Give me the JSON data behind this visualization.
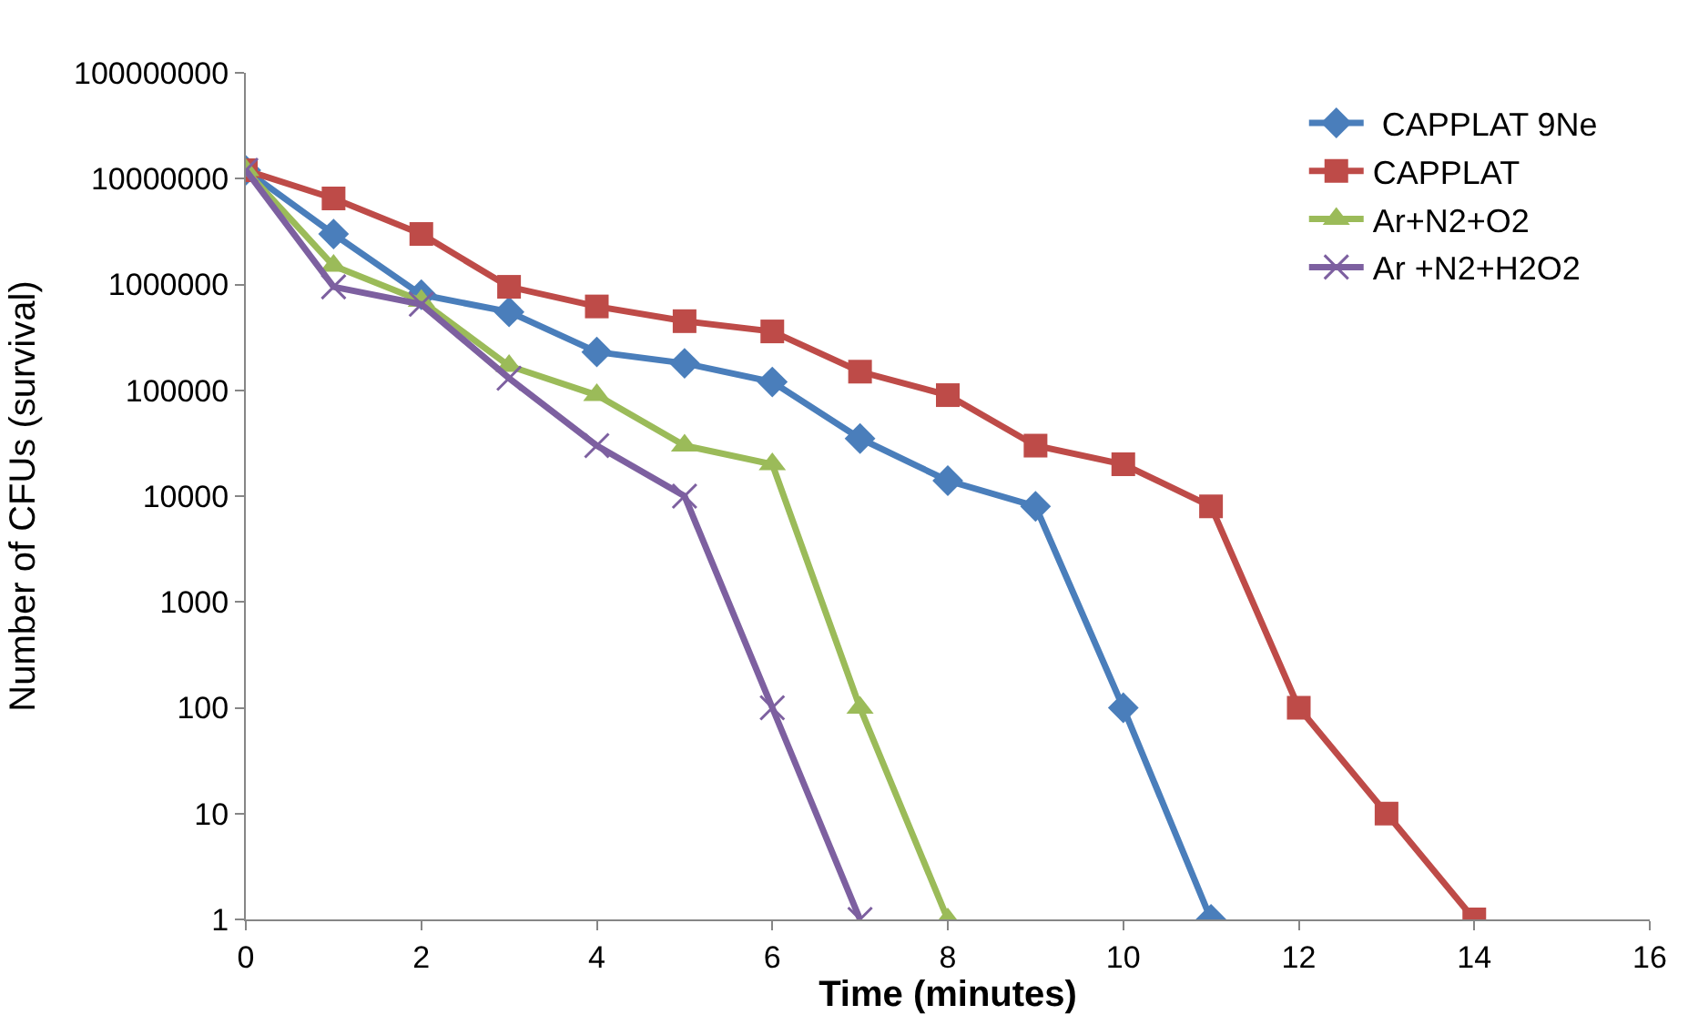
{
  "chart_data": {
    "type": "line",
    "xlabel": "Time (minutes)",
    "ylabel": "Number of CFUs (survival)",
    "log": "y",
    "legend": "top right",
    "xlim": [
      0,
      16
    ],
    "xticks": [
      0,
      2,
      4,
      6,
      8,
      10,
      12,
      14,
      16
    ],
    "ylim": [
      1,
      100000000
    ],
    "yticks": [
      1,
      10,
      100,
      1000,
      10000,
      100000,
      1000000,
      10000000,
      100000000
    ],
    "series": [
      {
        "name": " CAPPLAT 9Ne",
        "color": "#4a7ebb",
        "marker": "diamond",
        "x": [
          0,
          1,
          2,
          3,
          4,
          5,
          6,
          7,
          8,
          9,
          10,
          11
        ],
        "values": [
          12000000,
          3000000,
          800000,
          550000,
          230000,
          180000,
          120000,
          35000,
          14000,
          8000,
          100,
          1
        ]
      },
      {
        "name": "CAPPLAT",
        "color": "#be4b48",
        "marker": "square",
        "x": [
          0,
          1,
          2,
          3,
          4,
          5,
          6,
          7,
          8,
          9,
          10,
          11,
          12,
          13,
          14
        ],
        "values": [
          12000000,
          6500000,
          3000000,
          950000,
          620000,
          450000,
          360000,
          150000,
          90000,
          30000,
          20000,
          8000,
          100,
          10,
          1
        ]
      },
      {
        "name": "Ar+N2+O2",
        "color": "#9bbb59",
        "marker": "triangle",
        "x": [
          0,
          1,
          2,
          3,
          4,
          5,
          6,
          7,
          8
        ],
        "values": [
          12000000,
          1500000,
          700000,
          170000,
          90000,
          30000,
          20000,
          100,
          1
        ]
      },
      {
        "name": "Ar +N2+H2O2",
        "color": "#7d60a0",
        "marker": "cross",
        "x": [
          0,
          1,
          2,
          3,
          4,
          5,
          6,
          7
        ],
        "values": [
          12000000,
          950000,
          650000,
          130000,
          30000,
          10000,
          100,
          1
        ]
      }
    ]
  }
}
